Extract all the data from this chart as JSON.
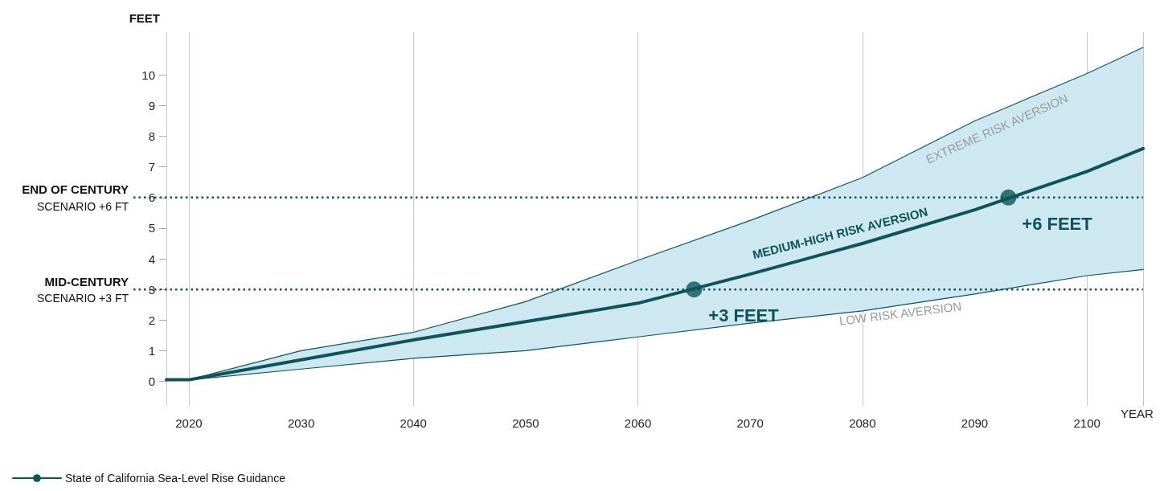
{
  "chart_data": {
    "type": "line",
    "xlabel": "YEAR",
    "ylabel": "FEET",
    "x": [
      2018,
      2020,
      2030,
      2040,
      2050,
      2060,
      2070,
      2080,
      2090,
      2100,
      2105
    ],
    "series": [
      {
        "name": "State of California Sea-Level Rise Guidance",
        "color": "#0d5459",
        "values": [
          0.05,
          0.05,
          0.7,
          1.35,
          1.95,
          2.55,
          3.5,
          4.5,
          5.6,
          6.85,
          7.6
        ],
        "lower": [
          0.05,
          0.05,
          0.4,
          0.75,
          1.0,
          1.45,
          1.9,
          2.3,
          2.85,
          3.45,
          3.65
        ],
        "upper": [
          0.05,
          0.05,
          1.0,
          1.6,
          2.6,
          3.95,
          5.25,
          6.65,
          8.5,
          10.05,
          10.9
        ]
      },
      {
        "color": "#0d5459",
        "values": [
          0.05,
          0.05,
          0.4,
          0.75,
          1.0,
          1.45,
          1.9,
          2.3,
          2.85,
          3.45,
          3.65
        ]
      },
      {
        "color": "#0d5459",
        "values": [
          0.05,
          0.05,
          1.0,
          1.6,
          2.6,
          3.95,
          5.25,
          6.65,
          8.5,
          10.05,
          10.9
        ]
      },
      {
        "type": "scatter",
        "color": "#0d5459",
        "marker": "circle",
        "x": [
          2065,
          2093
        ],
        "values": [
          3,
          6
        ]
      }
    ],
    "xlim": [
      2018,
      2105
    ],
    "xticks": [
      2020,
      2030,
      2040,
      2050,
      2060,
      2070,
      2080,
      2090,
      2100
    ],
    "ylim": [
      -0.8,
      11.4
    ],
    "yticks": [
      0,
      1,
      2,
      3,
      4,
      5,
      6,
      7,
      8,
      9,
      10
    ],
    "ref_lines": [
      {
        "axis": "y",
        "value": 6,
        "label": "END OF CENTURY\nSCENARIO +6 FT",
        "color": "#0d5459",
        "line_style": "dotted"
      },
      {
        "axis": "y",
        "value": 3,
        "label": "MID-CENTURY\nSCENARIO +3 FT",
        "color": "#0d5459",
        "line_style": "dotted"
      }
    ],
    "annotations": [
      "EXTREME RISK AVERSION",
      "MEDIUM-HIGH RISK AVERSION",
      "LOW RISK AVERSION",
      "+3 FEET",
      "+6 FEET"
    ],
    "grid": "x",
    "legend": "bottom left",
    "marker": "none",
    "line_style": "solid"
  }
}
